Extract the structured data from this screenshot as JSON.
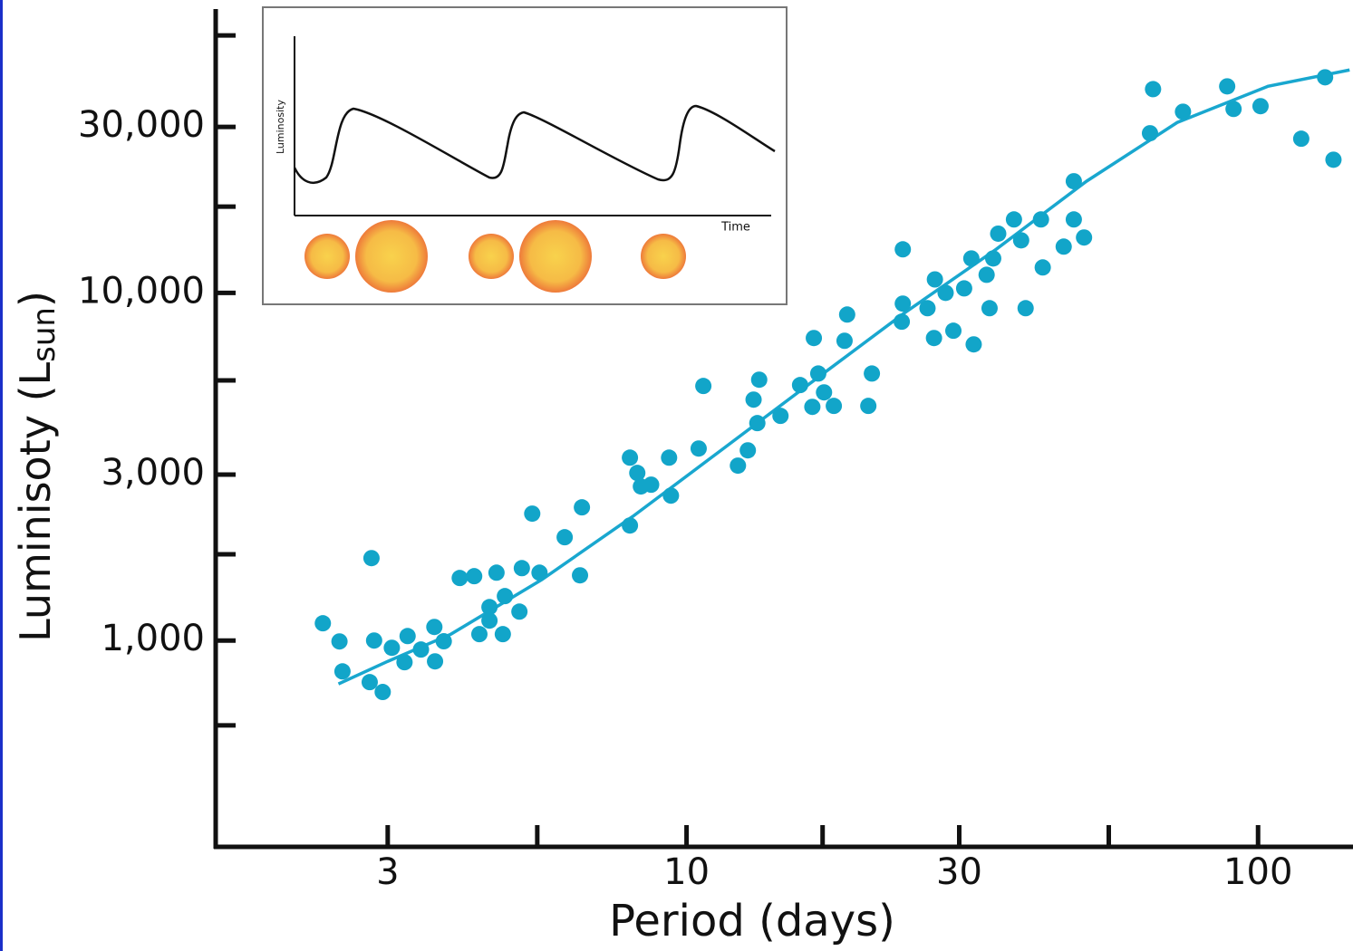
{
  "chart_data": {
    "type": "scatter",
    "xlabel": "Period (days)",
    "ylabel": {
      "main": "Luminisoty (L",
      "sub": "sun",
      "close": ")"
    },
    "xscale": "log",
    "yscale": "log",
    "xlim": [
      1.5,
      145
    ],
    "ylim": [
      255,
      65500
    ],
    "xticks": [
      3,
      10,
      30,
      100
    ],
    "minor_xticks": [
      5.48,
      17.3,
      54.8
    ],
    "yticks": [
      {
        "value": 1000,
        "label": "1,000"
      },
      {
        "value": 3000,
        "label": "3,000"
      },
      {
        "value": 10000,
        "label": "10,000"
      },
      {
        "value": 30000,
        "label": "30,000"
      }
    ],
    "minor_yticks": [
      570,
      1770,
      5600,
      17700,
      55000
    ],
    "points": {
      "color": "#12a5c9",
      "x": [
        2.31,
        2.47,
        2.5,
        2.81,
        2.84,
        2.79,
        2.94,
        3.05,
        3.25,
        3.21,
        3.43,
        3.62,
        3.63,
        3.76,
        4.01,
        4.25,
        4.34,
        4.52,
        4.52,
        4.65,
        4.77,
        4.81,
        5.1,
        5.15,
        5.37,
        5.53,
        6.12,
        6.51,
        6.56,
        7.96,
        7.96,
        8.2,
        8.32,
        8.67,
        9.32,
        9.39,
        10.5,
        10.7,
        12.3,
        12.8,
        13.1,
        13.3,
        13.4,
        14.6,
        15.8,
        16.6,
        16.7,
        17.0,
        17.4,
        18.1,
        18.9,
        19.1,
        20.8,
        21.1,
        23.8,
        23.9,
        23.9,
        26.4,
        27.1,
        27.2,
        28.4,
        29.3,
        30.6,
        31.5,
        31.8,
        33.5,
        33.9,
        34.4,
        35.1,
        37.4,
        38.5,
        39.2,
        41.7,
        42.0,
        45.7,
        47.6,
        47.6,
        49.6,
        64.7,
        65.5,
        73.9,
        88.3,
        90.6,
        101,
        119,
        131,
        135.5
      ],
      "values": [
        1121,
        994,
        815,
        1726,
        1000,
        759,
        711,
        953,
        1030,
        866,
        942,
        1094,
        871,
        995,
        1513,
        1531,
        1043,
        1248,
        1141,
        1567,
        1043,
        1342,
        1211,
        1615,
        2317,
        1567,
        1982,
        1540,
        2416,
        2142,
        3357,
        3034,
        2774,
        2807,
        3357,
        2611,
        3566,
        5397,
        3184,
        3524,
        4931,
        4220,
        5625,
        4427,
        5430,
        4700,
        7413,
        5861,
        5173,
        4730,
        7280,
        8660,
        4730,
        5861,
        8263,
        9311,
        13340,
        9033,
        7413,
        10930,
        10000,
        7782,
        10300,
        12560,
        7108,
        11270,
        9033,
        12560,
        14800,
        16260,
        14160,
        9033,
        16260,
        11830,
        13580,
        16260,
        20940,
        14430,
        28780,
        38540,
        33190,
        39260,
        33800,
        34430,
        27750,
        41690,
        24150
      ]
    },
    "fit": {
      "color": "#19a7cf",
      "x": [
        2.46,
        3,
        3.87,
        5.58,
        8.05,
        11.6,
        16.7,
        24.1,
        34.8,
        50.1,
        72.2,
        104,
        144.6
      ],
      "values": [
        750,
        871,
        1043,
        1496,
        2274,
        3566,
        5594,
        8770,
        13340,
        20940,
        30900,
        39260,
        43750
      ]
    },
    "inset": {
      "ylabel": "Luminosity",
      "xlabel": "Time"
    }
  }
}
